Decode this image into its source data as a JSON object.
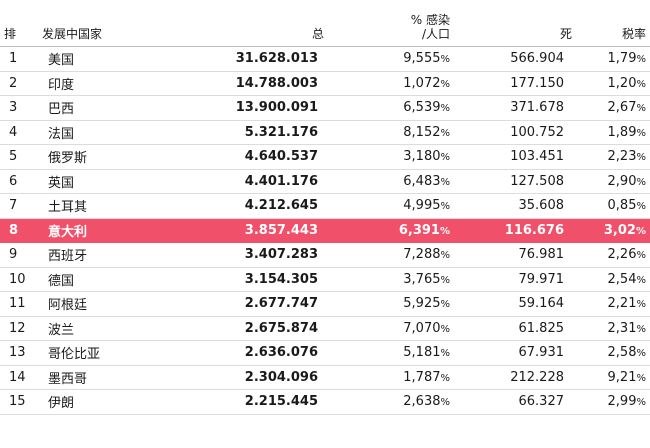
{
  "headers": {
    "rank": "排",
    "country": "发展中国家",
    "total": "总",
    "pct_line1": "% 感染",
    "pct_line2": "/人口",
    "deaths": "死",
    "rate": "税率"
  },
  "highlight_color": "#f0506a",
  "highlight_rank": 8,
  "rows": [
    {
      "rank": "1",
      "country": "美国",
      "total": "31.628.013",
      "pct": "9,555",
      "deaths": "566.904",
      "rate": "1,79"
    },
    {
      "rank": "2",
      "country": "印度",
      "total": "14.788.003",
      "pct": "1,072",
      "deaths": "177.150",
      "rate": "1,20"
    },
    {
      "rank": "3",
      "country": "巴西",
      "total": "13.900.091",
      "pct": "6,539",
      "deaths": "371.678",
      "rate": "2,67"
    },
    {
      "rank": "4",
      "country": "法国",
      "total": "5.321.176",
      "pct": "8,152",
      "deaths": "100.752",
      "rate": "1,89"
    },
    {
      "rank": "5",
      "country": "俄罗斯",
      "total": "4.640.537",
      "pct": "3,180",
      "deaths": "103.451",
      "rate": "2,23"
    },
    {
      "rank": "6",
      "country": "英国",
      "total": "4.401.176",
      "pct": "6,483",
      "deaths": "127.508",
      "rate": "2,90"
    },
    {
      "rank": "7",
      "country": "土耳其",
      "total": "4.212.645",
      "pct": "4,995",
      "deaths": "35.608",
      "rate": "0,85"
    },
    {
      "rank": "8",
      "country": "意大利",
      "total": "3.857.443",
      "pct": "6,391",
      "deaths": "116.676",
      "rate": "3,02"
    },
    {
      "rank": "9",
      "country": "西班牙",
      "total": "3.407.283",
      "pct": "7,288",
      "deaths": "76.981",
      "rate": "2,26"
    },
    {
      "rank": "10",
      "country": "德国",
      "total": "3.154.305",
      "pct": "3,765",
      "deaths": "79.971",
      "rate": "2,54"
    },
    {
      "rank": "11",
      "country": "阿根廷",
      "total": "2.677.747",
      "pct": "5,925",
      "deaths": "59.164",
      "rate": "2,21"
    },
    {
      "rank": "12",
      "country": "波兰",
      "total": "2.675.874",
      "pct": "7,070",
      "deaths": "61.825",
      "rate": "2,31"
    },
    {
      "rank": "13",
      "country": "哥伦比亚",
      "total": "2.636.076",
      "pct": "5,181",
      "deaths": "67.931",
      "rate": "2,58"
    },
    {
      "rank": "14",
      "country": "墨西哥",
      "total": "2.304.096",
      "pct": "1,787",
      "deaths": "212.228",
      "rate": "9,21"
    },
    {
      "rank": "15",
      "country": "伊朗",
      "total": "2.215.445",
      "pct": "2,638",
      "deaths": "66.327",
      "rate": "2,99"
    }
  ]
}
